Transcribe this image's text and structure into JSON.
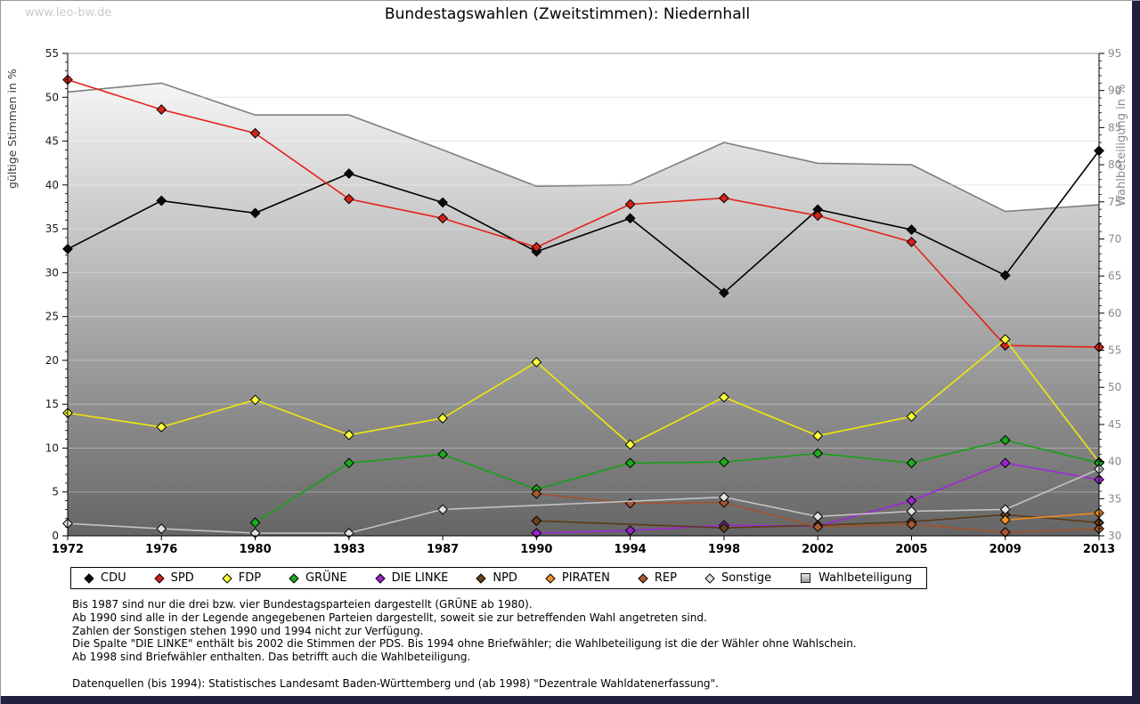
{
  "page": {
    "watermark": "www.leo-bw.de",
    "title": "Bundestagswahlen (Zweitstimmen): Niedernhall"
  },
  "chart_data": {
    "type": "line",
    "title": "Bundestagswahlen (Zweitstimmen): Niedernhall",
    "x_categories": [
      "1972",
      "1976",
      "1980",
      "1983",
      "1987",
      "1990",
      "1994",
      "1998",
      "2002",
      "2005",
      "2009",
      "2013"
    ],
    "y_left": {
      "label": "gültige Stimmen in %",
      "min": 0,
      "max": 55,
      "tick_major": 5,
      "tick_minor": 1
    },
    "y_right": {
      "label": "Wahlbeteiligung in %",
      "min": 30,
      "max": 95,
      "tick_major": 5,
      "tick_minor": 1
    },
    "grid": true,
    "legend_position": "bottom",
    "series": [
      {
        "id": "wahlbeteiligung",
        "name": "Wahlbeteiligung",
        "axis": "right",
        "type": "area",
        "color": "#7f7f7f",
        "marker": "none",
        "glyph": "square",
        "area_gradient": [
          "#ffffff",
          "#656565"
        ],
        "values": [
          89.8,
          91.0,
          86.7,
          86.7,
          82.0,
          77.1,
          77.3,
          83.0,
          80.2,
          80.0,
          73.7,
          74.6
        ]
      },
      {
        "id": "cdu",
        "name": "CDU",
        "axis": "left",
        "type": "line",
        "color": "#000000",
        "marker": "#0a0a0a",
        "glyph": "diamond",
        "values": [
          32.7,
          38.2,
          36.8,
          41.3,
          38.0,
          32.4,
          36.2,
          27.7,
          37.2,
          34.9,
          29.7,
          43.9
        ]
      },
      {
        "id": "spd",
        "name": "SPD",
        "axis": "left",
        "type": "line",
        "color": "#e32219",
        "marker": "#d32318",
        "glyph": "diamond",
        "values": [
          52.0,
          48.6,
          45.9,
          38.4,
          36.2,
          32.9,
          37.8,
          38.5,
          36.5,
          33.5,
          21.7,
          21.5
        ]
      },
      {
        "id": "fdp",
        "name": "FDP",
        "axis": "left",
        "type": "line",
        "color": "#efe90a",
        "marker": "#ffff3d",
        "glyph": "diamond",
        "values": [
          14.0,
          12.4,
          15.5,
          11.5,
          13.4,
          19.8,
          10.4,
          15.8,
          11.4,
          13.6,
          22.4,
          8.4
        ]
      },
      {
        "id": "gruene",
        "name": "GRÜNE",
        "axis": "left",
        "type": "line",
        "color": "#16a016",
        "marker": "#1cab1c",
        "glyph": "diamond",
        "values": [
          null,
          null,
          1.5,
          8.3,
          9.3,
          5.3,
          8.3,
          8.4,
          9.4,
          8.3,
          10.9,
          8.3
        ]
      },
      {
        "id": "die-linke",
        "name": "DIE LINKE",
        "axis": "left",
        "type": "line",
        "color": "#a026d9",
        "marker": "#9a27cc",
        "glyph": "diamond",
        "values": [
          null,
          null,
          null,
          null,
          null,
          0.3,
          0.6,
          1.2,
          1.1,
          4.0,
          8.3,
          6.4
        ]
      },
      {
        "id": "npd",
        "name": "NPD",
        "axis": "left",
        "type": "line",
        "color": "#5a3b17",
        "marker": "#64421c",
        "glyph": "diamond",
        "values": [
          null,
          null,
          null,
          null,
          null,
          1.7,
          null,
          0.9,
          1.2,
          1.6,
          2.4,
          1.5
        ]
      },
      {
        "id": "piraten",
        "name": "PIRATEN",
        "axis": "left",
        "type": "line",
        "color": "#ee8821",
        "marker": "#f28f25",
        "glyph": "diamond",
        "values": [
          null,
          null,
          null,
          null,
          null,
          null,
          null,
          null,
          null,
          null,
          1.8,
          2.6
        ]
      },
      {
        "id": "rep",
        "name": "REP",
        "axis": "left",
        "type": "line",
        "color": "#a0522d",
        "marker": "#a85830",
        "glyph": "diamond",
        "values": [
          null,
          null,
          null,
          null,
          null,
          4.8,
          3.7,
          3.8,
          1.0,
          1.3,
          0.4,
          0.8
        ]
      },
      {
        "id": "sonstige",
        "name": "Sonstige",
        "axis": "left",
        "type": "line",
        "color": "#c3c3c3",
        "marker": "#e2e2e2",
        "glyph": "diamond",
        "values": [
          1.4,
          0.8,
          0.3,
          0.3,
          3.0,
          null,
          null,
          4.4,
          2.2,
          2.8,
          3.0,
          7.6
        ]
      }
    ],
    "legend_order": [
      "cdu",
      "spd",
      "fdp",
      "gruene",
      "die-linke",
      "npd",
      "piraten",
      "rep",
      "sonstige",
      "wahlbeteiligung"
    ]
  },
  "notes": {
    "lines": [
      "Bis 1987 sind nur die drei bzw. vier Bundestagsparteien dargestellt (GRÜNE ab 1980).",
      "Ab 1990 sind alle in der Legende angegebenen Parteien dargestellt, soweit sie zur betreffenden Wahl angetreten sind.",
      "Zahlen der Sonstigen stehen 1990 und 1994 nicht zur Verfügung.",
      "Die Spalte \"DIE LINKE\" enthält bis 2002 die Stimmen der PDS. Bis 1994 ohne Briefwähler; die Wahlbeteiligung ist die der Wähler ohne Wahlschein.",
      "Ab 1998 sind Briefwähler enthalten. Das betrifft auch die Wahlbeteiligung."
    ],
    "source": "Datenquellen (bis 1994): Statistisches Landesamt Baden-Württemberg und (ab 1998) \"Dezentrale Wahldatenerfassung\"."
  }
}
